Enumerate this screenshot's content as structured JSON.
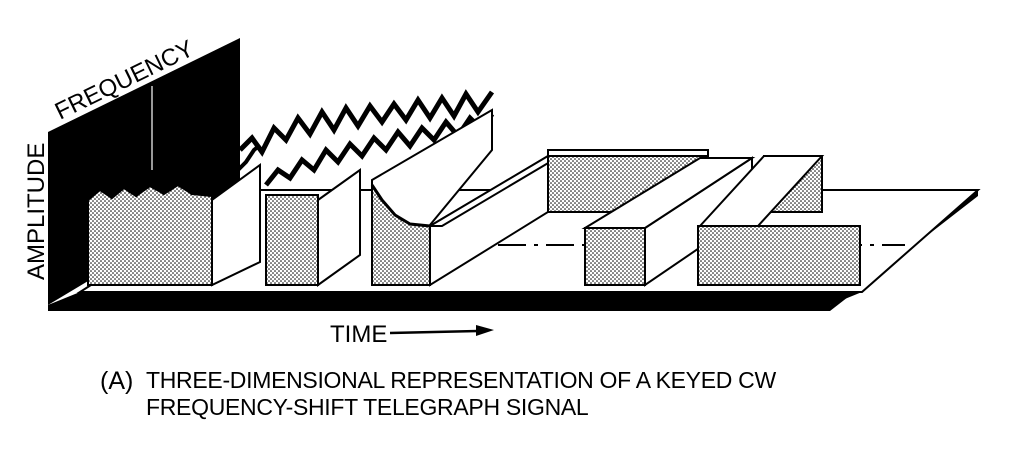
{
  "diagram": {
    "axis_frequency": "FREQUENCY",
    "axis_amplitude": "AMPLITUDE",
    "axis_time": "TIME"
  },
  "caption": {
    "letter": "(A)",
    "line1": "THREE-DIMENSIONAL REPRESENTATION OF A KEYED CW",
    "line2": "FREQUENCY-SHIFT TELEGRAPH SIGNAL"
  },
  "colors": {
    "ink": "#000000",
    "paper": "#ffffff",
    "stipple": "#d9d9d9"
  }
}
